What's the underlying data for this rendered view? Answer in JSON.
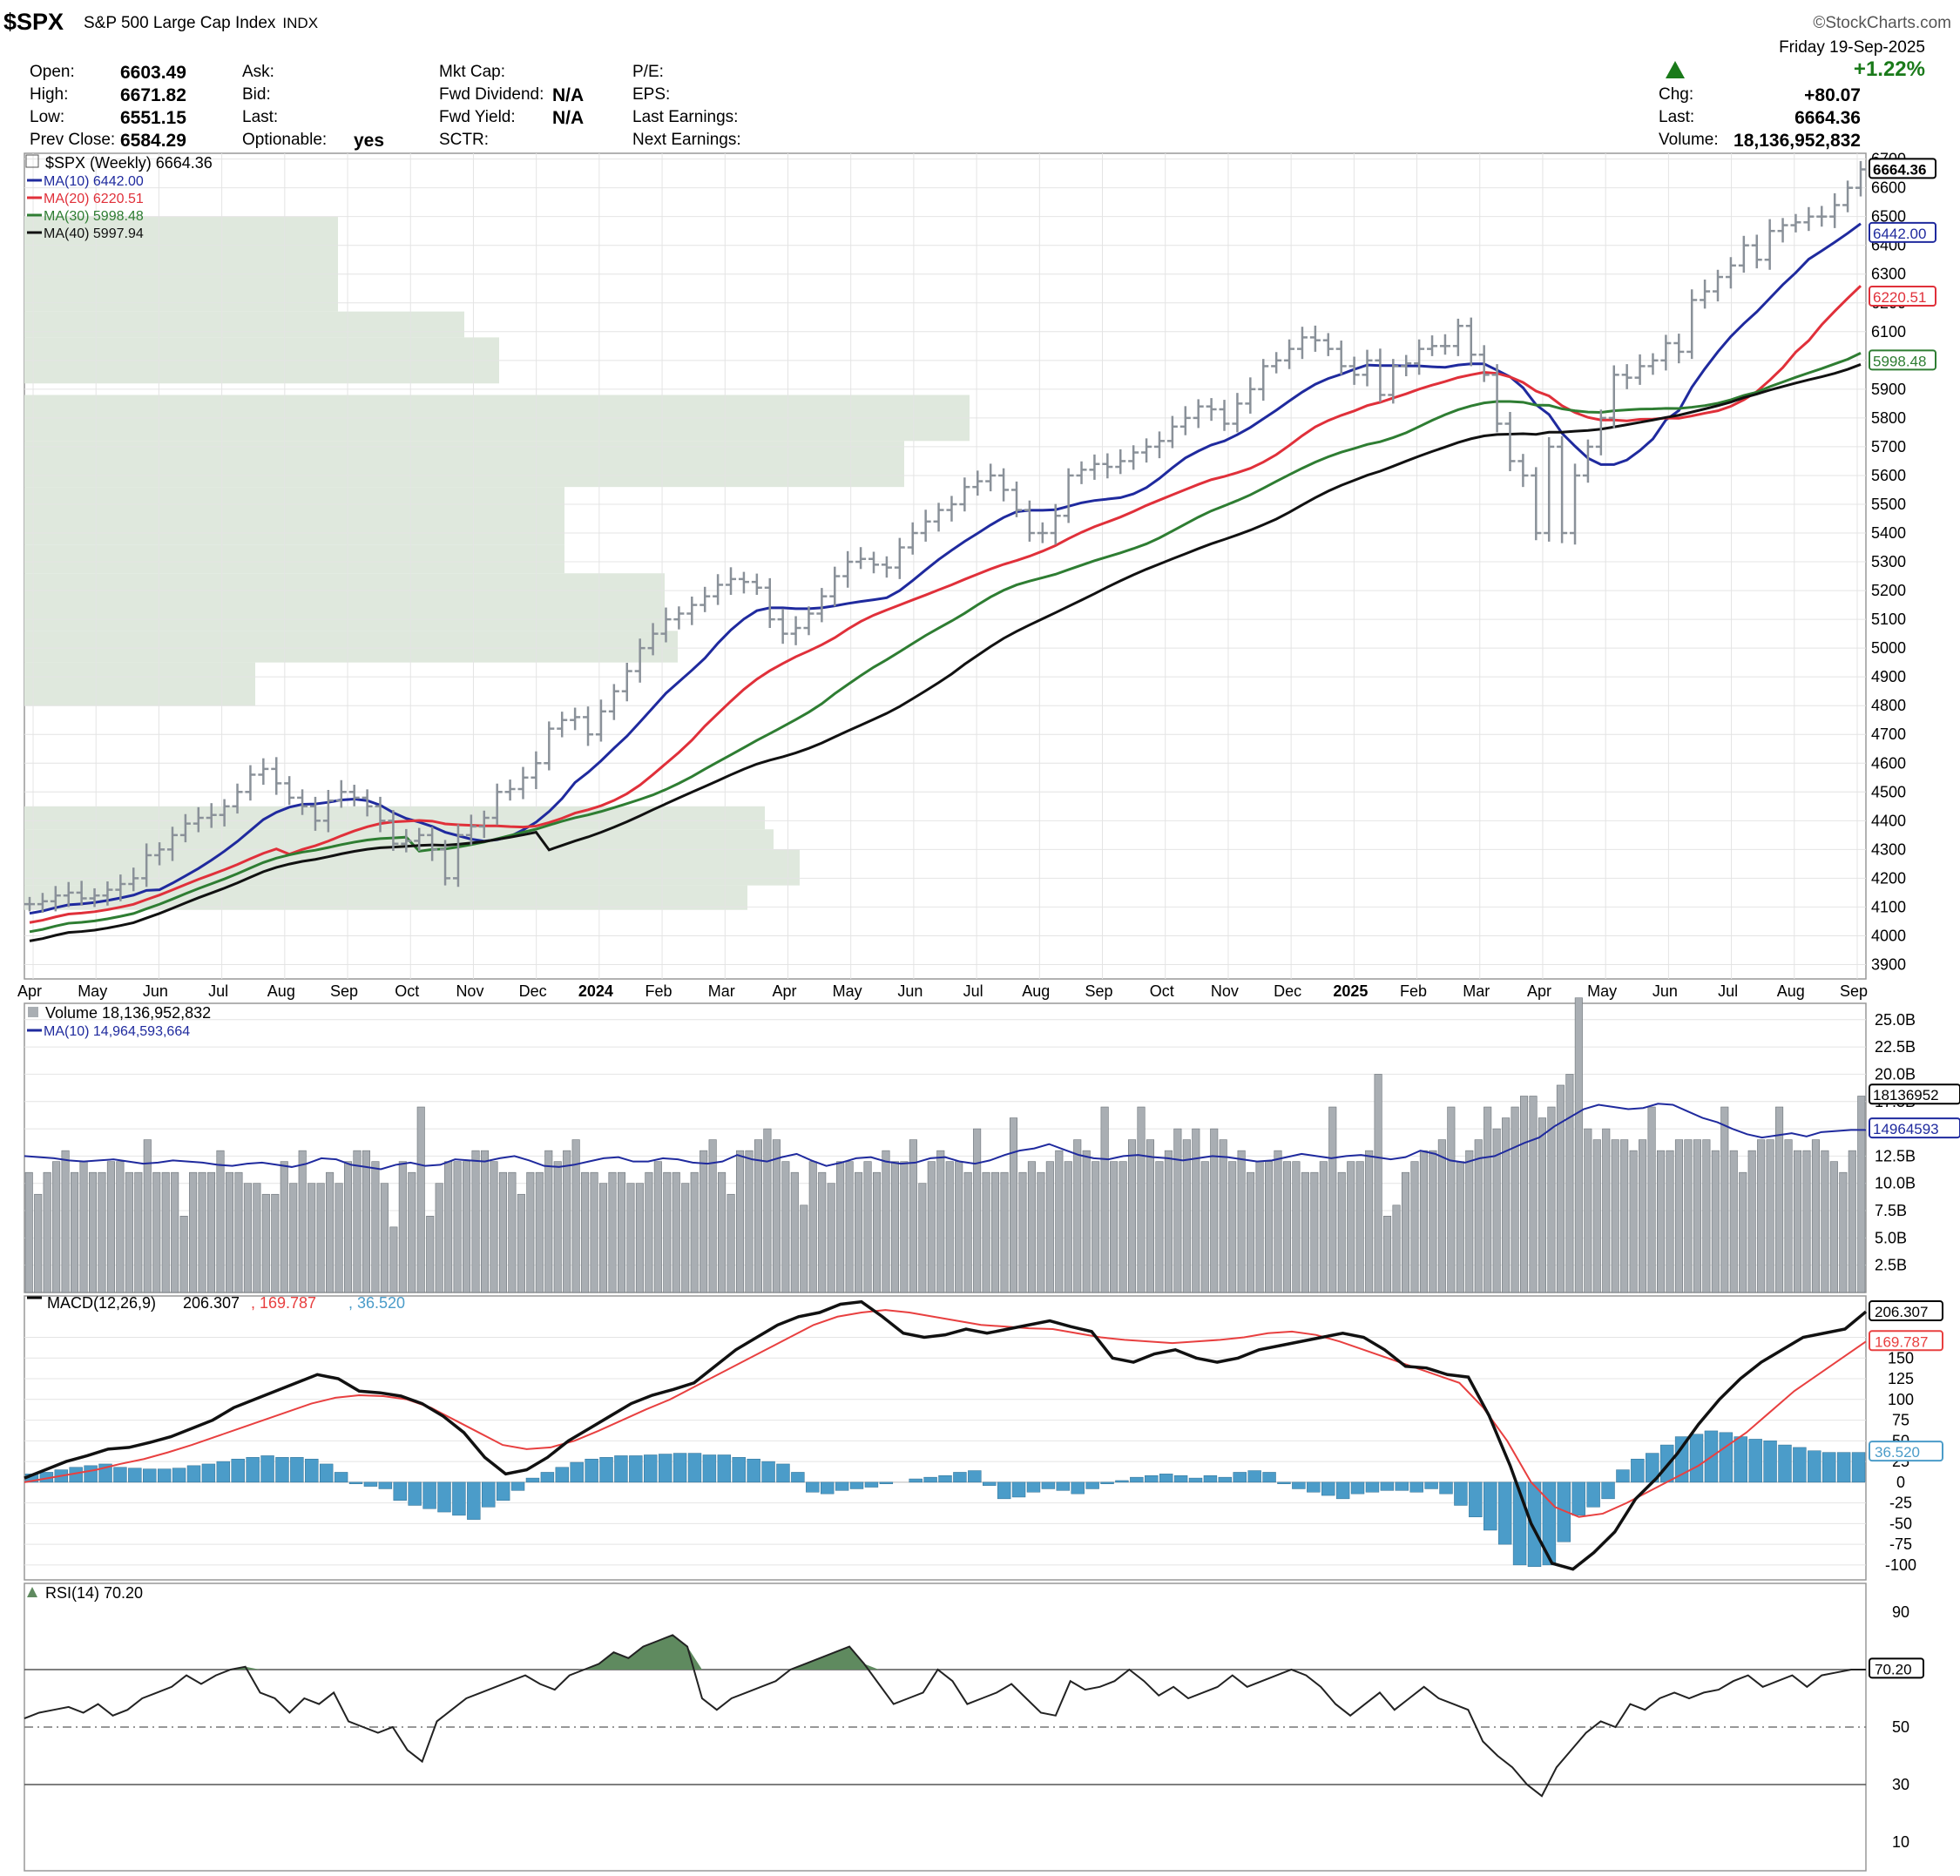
{
  "header": {
    "symbol": "$SPX",
    "name": "S&P 500 Large Cap Index",
    "exchange": "INDX",
    "watermark": "©StockCharts.com",
    "date_line": "Friday  19-Sep-2025",
    "pct_change": "+1.22%",
    "left_fields": [
      {
        "label": "Open:",
        "value": "6603.49"
      },
      {
        "label": "High:",
        "value": "6671.82"
      },
      {
        "label": "Low:",
        "value": "6551.15"
      },
      {
        "label": "Prev Close:",
        "value": "6584.29"
      }
    ],
    "mid_fields": [
      {
        "label": "Ask:",
        "value": ""
      },
      {
        "label": "Bid:",
        "value": ""
      },
      {
        "label": "Last:",
        "value": ""
      },
      {
        "label": "Optionable:",
        "value": "yes"
      }
    ],
    "mkt_fields": [
      {
        "label": "Mkt Cap:",
        "value": ""
      },
      {
        "label": "Fwd Dividend:",
        "value": "N/A"
      },
      {
        "label": "Fwd Yield:",
        "value": "N/A"
      },
      {
        "label": "SCTR:",
        "value": ""
      }
    ],
    "pe_fields": [
      {
        "label": "P/E:"
      },
      {
        "label": "EPS:"
      },
      {
        "label": "Last Earnings:"
      },
      {
        "label": "Next Earnings:"
      }
    ],
    "right_fields": [
      {
        "label": "Chg:",
        "value": "+80.07"
      },
      {
        "label": "Last:",
        "value": "6664.36"
      },
      {
        "label": "Volume:",
        "value": "18,136,952,832"
      }
    ]
  },
  "colors": {
    "up": "#1a7a1a",
    "ma10": "#1f2a9e",
    "ma20": "#e0303a",
    "ma30": "#2e7d32",
    "ma40": "#111111",
    "bar": "#8a9199",
    "vol": "#a9aeb3",
    "hist": "#4b9cc9",
    "signal": "#e84040",
    "vp": "#dfe8dd",
    "rsi_fill": "#5f8a5f"
  },
  "chart_data": [
    {
      "type": "ohlc",
      "title": "$SPX (Weekly) 6664.36",
      "legend": [
        {
          "name": "MA(10) 6442.00"
        },
        {
          "name": "MA(20) 6220.51"
        },
        {
          "name": "MA(30) 5998.48"
        },
        {
          "name": "MA(40) 5997.94"
        }
      ],
      "ylim": [
        3850,
        6720
      ],
      "y_ticks": [
        3900,
        4000,
        4100,
        4200,
        4300,
        4400,
        4500,
        4600,
        4700,
        4800,
        4900,
        5000,
        5100,
        5200,
        5300,
        5400,
        5500,
        5600,
        5700,
        5800,
        5900,
        6000,
        6100,
        6200,
        6300,
        6400,
        6500,
        6600,
        6700
      ],
      "x_labels": [
        "Apr",
        "May",
        "Jun",
        "Jul",
        "Aug",
        "Sep",
        "Oct",
        "Nov",
        "Dec",
        "2024",
        "Feb",
        "Mar",
        "Apr",
        "May",
        "Jun",
        "Jul",
        "Aug",
        "Sep",
        "Oct",
        "Nov",
        "Dec",
        "2025",
        "Feb",
        "Mar",
        "Apr",
        "May",
        "Jun",
        "Jul",
        "Aug",
        "Sep"
      ],
      "closes": [
        4110,
        4120,
        4140,
        4150,
        4130,
        4140,
        4160,
        4180,
        4200,
        4280,
        4300,
        4350,
        4390,
        4410,
        4420,
        4450,
        4500,
        4560,
        4580,
        4530,
        4480,
        4450,
        4400,
        4470,
        4500,
        4480,
        4450,
        4400,
        4320,
        4330,
        4350,
        4300,
        4200,
        4350,
        4380,
        4410,
        4500,
        4510,
        4550,
        4600,
        4720,
        4750,
        4760,
        4700,
        4780,
        4850,
        4920,
        5000,
        5050,
        5100,
        5120,
        5150,
        5180,
        5220,
        5240,
        5230,
        5210,
        5100,
        5050,
        5070,
        5120,
        5180,
        5250,
        5300,
        5310,
        5290,
        5280,
        5350,
        5400,
        5440,
        5480,
        5500,
        5560,
        5580,
        5600,
        5550,
        5480,
        5400,
        5400,
        5460,
        5600,
        5620,
        5640,
        5630,
        5650,
        5680,
        5700,
        5720,
        5770,
        5800,
        5840,
        5830,
        5780,
        5850,
        5900,
        5980,
        6000,
        6040,
        6080,
        6070,
        6040,
        5980,
        5950,
        6000,
        5880,
        5980,
        5990,
        6040,
        6050,
        6050,
        6120,
        6020,
        5950,
        5780,
        5650,
        5600,
        5400,
        5700,
        5400,
        5600,
        5700,
        5800,
        5950,
        5940,
        5980,
        6000,
        6060,
        6030,
        6210,
        6240,
        6290,
        6330,
        6400,
        6350,
        6450,
        6470,
        6480,
        6500,
        6500,
        6540,
        6600,
        6664
      ]
    },
    {
      "type": "bar",
      "title": "Volume 18,136,952,832",
      "legend": [
        {
          "name": "MA(10) 14,964,593,664"
        }
      ],
      "ylim": [
        0,
        26.5
      ],
      "y_ticks": [
        "2.5B",
        "5.0B",
        "7.5B",
        "10.0B",
        "12.5B",
        "15.0B",
        "17.5B",
        "20.0B",
        "22.5B",
        "25.0B"
      ],
      "last_tags": [
        "18136952",
        "14964593"
      ],
      "values": [
        11,
        9,
        11,
        12,
        13,
        11,
        12,
        11,
        11,
        12,
        12,
        11,
        11,
        14,
        11,
        11,
        11,
        7,
        11,
        11,
        11,
        13,
        11,
        11,
        10,
        10,
        9,
        9,
        12,
        10,
        13,
        10,
        10,
        11,
        10,
        12,
        13,
        13,
        12,
        10,
        6,
        12,
        11,
        17,
        7,
        10,
        12,
        12,
        12,
        13,
        13,
        12,
        11,
        11,
        9,
        11,
        11,
        13,
        12,
        13,
        14,
        11,
        11,
        10,
        11,
        11,
        10,
        10,
        11,
        12,
        11,
        11,
        10,
        11,
        13,
        14,
        11,
        9,
        13,
        13,
        14,
        15,
        14,
        12,
        11,
        8,
        12,
        11,
        10,
        12,
        12,
        11,
        12,
        11,
        13,
        12,
        12,
        14,
        10,
        12,
        13,
        12,
        12,
        11,
        15,
        11,
        11,
        11,
        16,
        11,
        12,
        11,
        12,
        13,
        12,
        14,
        13,
        12,
        17,
        12,
        12,
        14,
        17,
        14,
        12,
        13,
        15,
        14,
        15,
        12,
        15,
        14,
        12,
        13,
        11,
        12,
        12,
        13,
        12,
        12,
        11,
        11,
        12,
        17,
        11,
        12,
        12,
        13,
        20,
        7,
        8,
        11,
        12,
        13,
        13,
        14,
        17,
        12,
        13,
        14,
        17,
        15,
        16,
        17,
        18,
        18,
        16,
        17,
        19,
        20,
        27,
        15,
        14,
        15,
        14,
        14,
        13,
        14,
        17,
        13,
        13,
        14,
        14,
        14,
        14,
        13,
        17,
        13,
        11,
        13,
        14,
        14,
        17,
        14,
        13,
        13,
        14,
        13,
        12,
        11,
        13,
        18
      ],
      "ma10": [
        12.5,
        12.4,
        12.3,
        12.1,
        12.0,
        12.1,
        12.2,
        12.0,
        11.8,
        11.9,
        12.1,
        12.0,
        11.9,
        11.7,
        11.6,
        11.8,
        11.9,
        11.7,
        11.5,
        11.8,
        12.3,
        12.2,
        11.7,
        11.5,
        11.3,
        11.7,
        11.9,
        11.6,
        11.7,
        12.2,
        12.1,
        12.0,
        12.3,
        12.5,
        12.1,
        11.6,
        11.5,
        11.7,
        12.0,
        12.3,
        12.4,
        12.0,
        12.0,
        12.3,
        12.2,
        11.9,
        11.8,
        12.0,
        12.6,
        12.2,
        12.0,
        12.4,
        12.7,
        12.1,
        11.6,
        11.9,
        12.3,
        12.4,
        12.0,
        11.8,
        11.9,
        12.3,
        12.4,
        12.0,
        11.8,
        12.1,
        12.6,
        13.0,
        13.2,
        13.6,
        13.1,
        12.6,
        12.3,
        12.2,
        12.5,
        12.6,
        12.4,
        12.3,
        12.1,
        12.3,
        12.5,
        12.4,
        12.2,
        12.0,
        12.1,
        12.4,
        12.7,
        12.5,
        12.3,
        12.5,
        12.6,
        12.4,
        12.2,
        12.4,
        13.0,
        12.7,
        12.1,
        11.9,
        12.3,
        12.5,
        13.1,
        13.7,
        14.2,
        15.2,
        16.0,
        16.8,
        17.2,
        17.0,
        16.8,
        16.9,
        17.3,
        17.2,
        16.6,
        16.0,
        15.6,
        15.0,
        14.5,
        14.2,
        14.4,
        14.6,
        14.3,
        14.7,
        14.8,
        14.9,
        14.9
      ]
    },
    {
      "type": "bar",
      "title": "MACD(12,26,9)",
      "label_values": [
        "206.307",
        ", 169.787",
        ", 36.520"
      ],
      "ylim": [
        -118,
        225
      ],
      "y_ticks": [
        -100,
        -75,
        -50,
        -25,
        0,
        25,
        50,
        75,
        100,
        125,
        150,
        175
      ],
      "last_tags": [
        "206.307",
        "169.787",
        "36.520"
      ],
      "macd": [
        5,
        15,
        25,
        32,
        40,
        42,
        48,
        55,
        65,
        75,
        90,
        100,
        110,
        120,
        130,
        125,
        110,
        108,
        104,
        95,
        80,
        60,
        30,
        10,
        15,
        30,
        50,
        65,
        80,
        95,
        105,
        112,
        120,
        140,
        160,
        175,
        190,
        200,
        205,
        215,
        218,
        200,
        180,
        175,
        178,
        185,
        180,
        185,
        190,
        195,
        188,
        182,
        150,
        145,
        155,
        160,
        150,
        145,
        150,
        160,
        165,
        170,
        175,
        180,
        175,
        160,
        140,
        138,
        130,
        127,
        80,
        20,
        -50,
        -98,
        -105,
        -85,
        -60,
        -20,
        5,
        35,
        70,
        100,
        125,
        145,
        160,
        175,
        180,
        185,
        206
      ],
      "signal": [
        0,
        5,
        10,
        15,
        22,
        28,
        36,
        45,
        55,
        65,
        75,
        85,
        95,
        102,
        105,
        104,
        100,
        90,
        75,
        60,
        45,
        40,
        42,
        50,
        62,
        75,
        88,
        100,
        115,
        130,
        145,
        160,
        175,
        190,
        200,
        205,
        208,
        205,
        200,
        195,
        190,
        188,
        186,
        185,
        180,
        175,
        172,
        170,
        168,
        170,
        172,
        175,
        180,
        182,
        178,
        170,
        160,
        150,
        140,
        130,
        120,
        90,
        50,
        0,
        -30,
        -42,
        -38,
        -25,
        -10,
        5,
        20,
        40,
        60,
        85,
        110,
        130,
        150,
        170
      ],
      "hist": [
        10,
        12,
        15,
        18,
        20,
        22,
        18,
        17,
        16,
        16,
        17,
        20,
        22,
        25,
        28,
        30,
        32,
        30,
        30,
        28,
        22,
        12,
        -2,
        -5,
        -8,
        -22,
        -28,
        -32,
        -36,
        -40,
        -45,
        -30,
        -22,
        -10,
        5,
        12,
        18,
        24,
        28,
        30,
        32,
        32,
        33,
        34,
        35,
        35,
        33,
        33,
        30,
        28,
        25,
        22,
        12,
        -12,
        -14,
        -10,
        -8,
        -6,
        -2,
        0,
        4,
        6,
        8,
        12,
        14,
        -4,
        -20,
        -18,
        -12,
        -8,
        -10,
        -14,
        -8,
        -2,
        2,
        6,
        8,
        10,
        8,
        5,
        8,
        6,
        12,
        14,
        12,
        -2,
        -8,
        -12,
        -16,
        -20,
        -14,
        -12,
        -10,
        -10,
        -12,
        -8,
        -14,
        -28,
        -42,
        -58,
        -75,
        -100,
        -102,
        -100,
        -72,
        -40,
        -30,
        -20,
        15,
        28,
        35,
        45,
        55,
        58,
        62,
        60,
        55,
        52,
        50,
        45,
        42,
        38,
        36,
        36,
        36
      ],
      "ylabel": ""
    },
    {
      "type": "line",
      "title": "RSI(14) 70.20",
      "ylim": [
        0,
        100
      ],
      "y_ticks": [
        10,
        30,
        50,
        70,
        90
      ],
      "last_tags": [
        "70.20"
      ],
      "values": [
        53,
        55,
        56,
        57,
        55,
        58,
        54,
        56,
        60,
        62,
        64,
        68,
        65,
        68,
        70,
        71,
        62,
        60,
        55,
        60,
        58,
        62,
        52,
        50,
        48,
        50,
        42,
        38,
        52,
        56,
        60,
        62,
        64,
        66,
        68,
        65,
        63,
        68,
        70,
        72,
        76,
        74,
        78,
        80,
        82,
        78,
        60,
        56,
        60,
        62,
        64,
        66,
        70,
        72,
        74,
        76,
        78,
        72,
        65,
        58,
        60,
        62,
        70,
        66,
        58,
        60,
        62,
        65,
        60,
        55,
        54,
        66,
        63,
        64,
        66,
        70,
        66,
        61,
        64,
        60,
        62,
        64,
        68,
        64,
        66,
        68,
        70,
        68,
        64,
        58,
        54,
        58,
        62,
        56,
        60,
        64,
        60,
        58,
        56,
        45,
        40,
        36,
        30,
        26,
        36,
        42,
        48,
        52,
        50,
        58,
        56,
        60,
        62,
        60,
        62,
        63,
        66,
        68,
        64,
        66,
        68,
        64,
        68,
        69,
        70,
        70
      ]
    }
  ]
}
